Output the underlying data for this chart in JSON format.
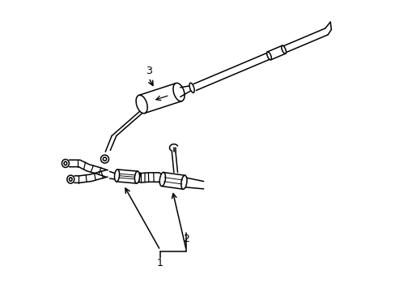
{
  "background_color": "#ffffff",
  "line_color": "#000000",
  "line_width": 1.1,
  "fig_width": 4.89,
  "fig_height": 3.6,
  "dpi": 100,
  "label_fontsize": 9,
  "label_1": [
    0.37,
    0.095
  ],
  "label_2": [
    0.46,
    0.18
  ],
  "label_3": [
    0.33,
    0.76
  ]
}
